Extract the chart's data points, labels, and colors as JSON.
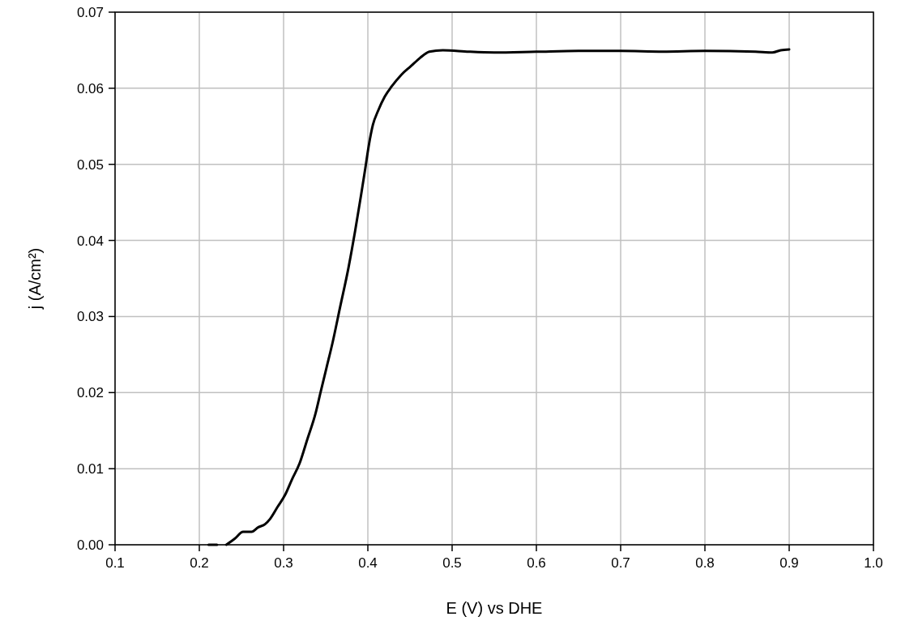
{
  "chart_data": {
    "type": "line",
    "xlabel": "E (V) vs DHE",
    "ylabel": "j (A/cm²)",
    "xlim": [
      0.1,
      1.0
    ],
    "xticks": [
      0.1,
      0.2,
      0.3,
      0.4,
      0.5,
      0.6,
      0.7,
      0.8,
      0.9,
      {
        "value": 1.0,
        "label": "1.0"
      }
    ],
    "ylim": [
      0,
      0.07
    ],
    "yticks": [
      {
        "value": 0,
        "label": "0.00"
      },
      0.01,
      0.02,
      0.03,
      0.04,
      0.05,
      0.06,
      0.07
    ],
    "grid": true,
    "line_style": "solid",
    "marker": "none",
    "series": [
      {
        "color": "#000000",
        "x": [
          0.211,
          0.221,
          0.226,
          0.232,
          0.242,
          0.252,
          0.262,
          0.27,
          0.278,
          0.284,
          0.293,
          0.302,
          0.31,
          0.319,
          0.328,
          0.338,
          0.344,
          0.351,
          0.358,
          0.367,
          0.377,
          0.385,
          0.392,
          0.397,
          0.401,
          0.406,
          0.412,
          0.42,
          0.428,
          0.44,
          0.451,
          0.462,
          0.473,
          0.489,
          0.52,
          0.55,
          0.6,
          0.65,
          0.7,
          0.75,
          0.8,
          0.86,
          0.88,
          0.89,
          0.9
        ],
        "values": [
          0,
          0,
          null,
          0,
          0.0008,
          0.0017,
          0.0017,
          0.0023,
          0.0027,
          0.0034,
          0.005,
          0.0066,
          0.0086,
          0.0107,
          0.0138,
          0.0173,
          0.0201,
          0.0233,
          0.0265,
          0.0312,
          0.0364,
          0.0413,
          0.046,
          0.0495,
          0.0524,
          0.0552,
          0.057,
          0.0589,
          0.0602,
          0.0618,
          0.0629,
          0.064,
          0.0648,
          0.065,
          0.0648,
          0.0647,
          0.0648,
          0.0649,
          0.0649,
          0.0648,
          0.0649,
          0.0648,
          0.0647,
          0.065,
          0.0651
        ]
      }
    ]
  }
}
